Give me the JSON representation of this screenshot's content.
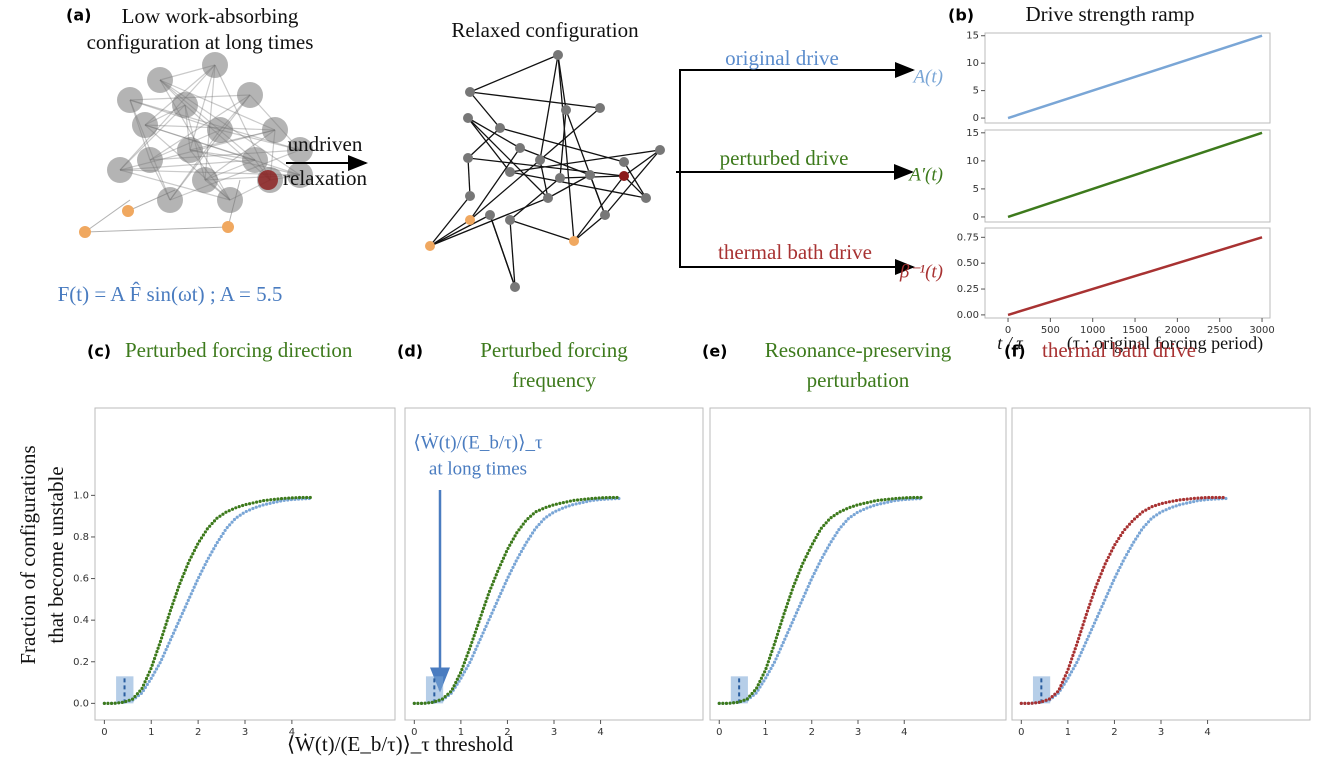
{
  "figure": {
    "panel_a": "(a)",
    "panel_b": "(b)",
    "title_a": [
      "Low work-absorbing",
      "configuration at long times"
    ],
    "relaxed_title": "Relaxed configuration",
    "relax_arrow": [
      "undriven",
      "relaxation"
    ],
    "drives": [
      "original drive",
      "perturbed drive",
      "thermal bath drive"
    ],
    "formula": "F(t) = A F̂ sin(ωt) ;  A = 5.5",
    "ramp_title": "Drive strength ramp",
    "cdf_ylabel": [
      "Fraction of configurations",
      "that become unstable"
    ],
    "cdf_xlabel": "⟨Ẇ(t)/(E_b/τ)⟩_τ threshold",
    "annotation": [
      "⟨Ẇ(t)/(E_b/τ)⟩_τ",
      "at long times"
    ]
  },
  "chart_data": [
    {
      "type": "line",
      "ylabel": "A(t)",
      "x": [
        0,
        3000
      ],
      "series": [
        {
          "color": "#7aa6d6",
          "values": [
            0,
            15
          ]
        }
      ],
      "xlim": [
        -272,
        3094
      ],
      "ylim": [
        -0.9,
        15.5
      ],
      "yticks": [
        0,
        5,
        10,
        15
      ]
    },
    {
      "type": "line",
      "ylabel": "A′(t)",
      "x": [
        0,
        3000
      ],
      "series": [
        {
          "color": "#3d7a1c",
          "values": [
            0,
            15
          ]
        }
      ],
      "xlim": [
        -272,
        3094
      ],
      "ylim": [
        -0.9,
        15.5
      ],
      "yticks": [
        0,
        5,
        10,
        15
      ]
    },
    {
      "type": "line",
      "ylabel": "β⁻¹(t)",
      "xlabel": [
        "t / τ",
        "(τ : original forcing period)"
      ],
      "x": [
        0,
        3000
      ],
      "series": [
        {
          "color": "#a83232",
          "values": [
            0,
            0.75
          ]
        }
      ],
      "xlim": [
        -272,
        3094
      ],
      "ylim": [
        -0.03,
        0.84
      ],
      "xticks": [
        0,
        500,
        1000,
        1500,
        2000,
        2500,
        3000
      ],
      "yticks": [
        {
          "value": 0,
          "label": "0.00"
        },
        0.25,
        {
          "value": 0.5,
          "label": "0.50"
        },
        0.75
      ]
    },
    {
      "type": "cdf",
      "panel": "(c)",
      "title": [
        "Perturbed forcing direction"
      ],
      "title_color": "#3d7a1c",
      "x": [
        0,
        0.2,
        0.4,
        0.6,
        0.8,
        1,
        1.2,
        1.4,
        1.6,
        1.8,
        2,
        2.2,
        2.4,
        2.6,
        2.8,
        3,
        3.2,
        3.4,
        3.6,
        3.8,
        4,
        4.2,
        4.4
      ],
      "series": [
        {
          "color": "#7aa6d6",
          "values": [
            0,
            0,
            0.005,
            0.015,
            0.05,
            0.12,
            0.2,
            0.3,
            0.4,
            0.5,
            0.6,
            0.69,
            0.77,
            0.84,
            0.89,
            0.92,
            0.94,
            0.955,
            0.965,
            0.975,
            0.98,
            0.983,
            0.985
          ]
        },
        {
          "color": "#3d7a1c",
          "values": [
            0,
            0,
            0.005,
            0.02,
            0.07,
            0.17,
            0.3,
            0.44,
            0.57,
            0.68,
            0.77,
            0.84,
            0.89,
            0.92,
            0.94,
            0.955,
            0.965,
            0.975,
            0.98,
            0.985,
            0.988,
            0.99,
            0.99
          ]
        }
      ],
      "xlim": [
        -0.2,
        6.2
      ],
      "ylim": [
        -0.08,
        1.42
      ],
      "xticks": [
        0,
        1,
        2,
        3,
        4
      ],
      "yticks": [
        {
          "value": 0,
          "label": "0.0"
        },
        0.2,
        0.4,
        0.6,
        0.8,
        {
          "value": 1,
          "label": "1.0"
        }
      ],
      "highlight": {
        "x": 0.43,
        "xmin": 0.25,
        "xmax": 0.62,
        "ymax": 0.13
      }
    },
    {
      "type": "cdf",
      "panel": "(d)",
      "title": [
        "Perturbed forcing",
        "frequency"
      ],
      "title_color": "#3d7a1c",
      "x": [
        0,
        0.2,
        0.4,
        0.6,
        0.8,
        1,
        1.2,
        1.4,
        1.6,
        1.8,
        2,
        2.2,
        2.4,
        2.6,
        2.8,
        3,
        3.2,
        3.4,
        3.6,
        3.8,
        4,
        4.2,
        4.4
      ],
      "series": [
        {
          "color": "#7aa6d6",
          "values": [
            0,
            0,
            0.005,
            0.015,
            0.05,
            0.12,
            0.2,
            0.3,
            0.4,
            0.5,
            0.6,
            0.69,
            0.77,
            0.84,
            0.89,
            0.92,
            0.94,
            0.955,
            0.965,
            0.975,
            0.98,
            0.983,
            0.985
          ]
        },
        {
          "color": "#3d7a1c",
          "values": [
            0,
            0,
            0.005,
            0.02,
            0.06,
            0.15,
            0.27,
            0.4,
            0.53,
            0.64,
            0.74,
            0.82,
            0.88,
            0.92,
            0.94,
            0.955,
            0.965,
            0.975,
            0.98,
            0.985,
            0.988,
            0.99,
            0.99
          ]
        }
      ],
      "xlim": [
        -0.2,
        6.2
      ],
      "ylim": [
        -0.08,
        1.42
      ],
      "xticks": [
        0,
        1,
        2,
        3,
        4
      ],
      "highlight": {
        "x": 0.43,
        "xmin": 0.25,
        "xmax": 0.62,
        "ymax": 0.13
      }
    },
    {
      "type": "cdf",
      "panel": "(e)",
      "title": [
        "Resonance-preserving",
        "perturbation"
      ],
      "title_color": "#3d7a1c",
      "x": [
        0,
        0.2,
        0.4,
        0.6,
        0.8,
        1,
        1.2,
        1.4,
        1.6,
        1.8,
        2,
        2.2,
        2.4,
        2.6,
        2.8,
        3,
        3.2,
        3.4,
        3.6,
        3.8,
        4,
        4.2,
        4.4
      ],
      "series": [
        {
          "color": "#7aa6d6",
          "values": [
            0,
            0,
            0.005,
            0.015,
            0.05,
            0.12,
            0.2,
            0.3,
            0.4,
            0.5,
            0.6,
            0.69,
            0.77,
            0.84,
            0.89,
            0.92,
            0.94,
            0.955,
            0.965,
            0.975,
            0.98,
            0.983,
            0.985
          ]
        },
        {
          "color": "#3d7a1c",
          "values": [
            0,
            0,
            0.005,
            0.02,
            0.07,
            0.16,
            0.29,
            0.43,
            0.56,
            0.67,
            0.76,
            0.84,
            0.89,
            0.92,
            0.94,
            0.955,
            0.965,
            0.975,
            0.98,
            0.985,
            0.988,
            0.99,
            0.99
          ]
        }
      ],
      "xlim": [
        -0.2,
        6.2
      ],
      "ylim": [
        -0.08,
        1.42
      ],
      "xticks": [
        0,
        1,
        2,
        3,
        4
      ],
      "highlight": {
        "x": 0.43,
        "xmin": 0.25,
        "xmax": 0.62,
        "ymax": 0.13
      }
    },
    {
      "type": "cdf",
      "panel": "(f)",
      "title": [
        "thermal bath drive"
      ],
      "title_color": "#a83232",
      "x": [
        0,
        0.2,
        0.4,
        0.6,
        0.8,
        1,
        1.2,
        1.4,
        1.6,
        1.8,
        2,
        2.2,
        2.4,
        2.6,
        2.8,
        3,
        3.2,
        3.4,
        3.6,
        3.8,
        4,
        4.2,
        4.4
      ],
      "series": [
        {
          "color": "#7aa6d6",
          "values": [
            0,
            0,
            0.005,
            0.015,
            0.05,
            0.12,
            0.2,
            0.3,
            0.4,
            0.5,
            0.6,
            0.69,
            0.77,
            0.84,
            0.89,
            0.92,
            0.94,
            0.955,
            0.965,
            0.975,
            0.98,
            0.983,
            0.985
          ]
        },
        {
          "color": "#a83232",
          "values": [
            0,
            0,
            0.005,
            0.02,
            0.06,
            0.16,
            0.29,
            0.43,
            0.56,
            0.67,
            0.76,
            0.83,
            0.88,
            0.92,
            0.945,
            0.96,
            0.97,
            0.978,
            0.983,
            0.987,
            0.99,
            0.99,
            0.99
          ]
        }
      ],
      "xlim": [
        -0.2,
        6.2
      ],
      "ylim": [
        -0.08,
        1.42
      ],
      "xticks": [
        0,
        1,
        2,
        3,
        4
      ],
      "highlight": {
        "x": 0.43,
        "xmin": 0.25,
        "xmax": 0.62,
        "ymax": 0.13
      }
    }
  ]
}
